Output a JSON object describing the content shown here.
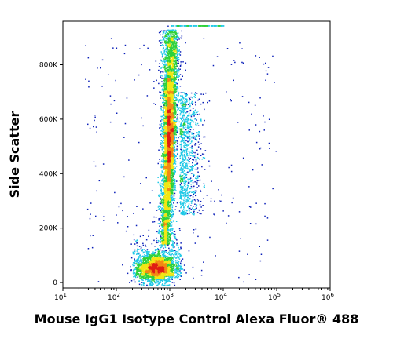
{
  "chart_data": {
    "type": "scatter",
    "style": "density-colored flow cytometry dot plot",
    "title": "",
    "xlabel": "Mouse IgG1 Isotype Control Alexa Fluor® 488",
    "ylabel": "Side Scatter",
    "xscale": "log",
    "yscale": "linear",
    "xlim": [
      10,
      1000000
    ],
    "ylim": [
      -20000,
      960000
    ],
    "x_ticks": [
      {
        "base": "10",
        "exp": "1"
      },
      {
        "base": "10",
        "exp": "2"
      },
      {
        "base": "10",
        "exp": "3"
      },
      {
        "base": "10",
        "exp": "4"
      },
      {
        "base": "10",
        "exp": "5"
      },
      {
        "base": "10",
        "exp": "6"
      }
    ],
    "y_ticks": [
      "0",
      "200K",
      "400K",
      "600K",
      "800K"
    ],
    "y_tick_values": [
      0,
      200000,
      400000,
      600000,
      800000
    ],
    "density_colors": [
      "#0a1fb8",
      "#1ec8e6",
      "#2ed13a",
      "#f2e614",
      "#f28a14",
      "#e01e14"
    ],
    "populations": [
      {
        "name": "low side scatter cluster",
        "x_center": 600,
        "y_center": 60000,
        "color": "#e01e14"
      },
      {
        "name": "main column",
        "x_center": 900,
        "y_center": 520000,
        "color": "#2ed13a"
      },
      {
        "name": "high side scatter tail",
        "x_center": 1000,
        "y_center": 870000,
        "color": "#1ec8e6"
      }
    ],
    "grid": false,
    "legend": "none"
  }
}
